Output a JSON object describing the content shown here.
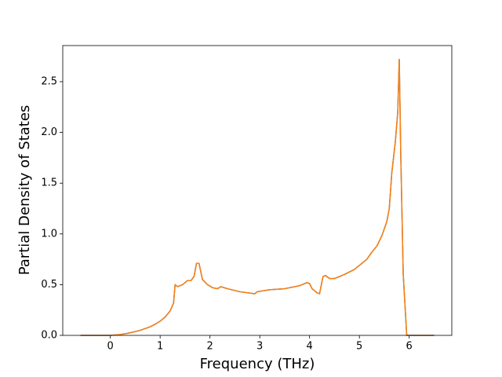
{
  "chart_data": {
    "type": "line",
    "x_label": "Frequency (THz)",
    "y_label": "Partial Density of States",
    "x": [
      -0.6,
      0,
      0.2,
      0.4,
      0.6,
      0.8,
      0.9,
      1.0,
      1.1,
      1.2,
      1.27,
      1.3,
      1.35,
      1.45,
      1.55,
      1.62,
      1.68,
      1.73,
      1.78,
      1.85,
      1.95,
      2.05,
      2.15,
      2.22,
      2.35,
      2.6,
      2.9,
      2.95,
      3.2,
      3.5,
      3.8,
      3.95,
      4.0,
      4.05,
      4.15,
      4.2,
      4.27,
      4.32,
      4.4,
      4.5,
      4.7,
      4.9,
      5.05,
      5.15,
      5.25,
      5.35,
      5.45,
      5.55,
      5.6,
      5.65,
      5.72,
      5.77,
      5.8,
      5.83,
      5.88,
      5.95,
      6.5
    ],
    "series": [
      {
        "color": "#1f77b4",
        "values": [
          0,
          0,
          0.008,
          0.025,
          0.05,
          0.085,
          0.11,
          0.14,
          0.18,
          0.24,
          0.32,
          0.5,
          0.48,
          0.5,
          0.54,
          0.54,
          0.58,
          0.71,
          0.71,
          0.55,
          0.5,
          0.47,
          0.46,
          0.48,
          0.46,
          0.43,
          0.41,
          0.43,
          0.45,
          0.46,
          0.49,
          0.52,
          0.51,
          0.46,
          0.42,
          0.41,
          0.58,
          0.59,
          0.56,
          0.56,
          0.6,
          0.65,
          0.71,
          0.75,
          0.82,
          0.88,
          0.98,
          1.12,
          1.25,
          1.6,
          1.9,
          2.2,
          2.72,
          1.8,
          0.6,
          0,
          0
        ]
      },
      {
        "color": "#ff7f0e",
        "values": [
          0,
          0,
          0.008,
          0.025,
          0.05,
          0.085,
          0.11,
          0.14,
          0.18,
          0.24,
          0.32,
          0.5,
          0.48,
          0.5,
          0.54,
          0.54,
          0.58,
          0.71,
          0.71,
          0.55,
          0.5,
          0.47,
          0.46,
          0.48,
          0.46,
          0.43,
          0.41,
          0.43,
          0.45,
          0.46,
          0.49,
          0.52,
          0.51,
          0.46,
          0.42,
          0.41,
          0.58,
          0.59,
          0.56,
          0.56,
          0.6,
          0.65,
          0.71,
          0.75,
          0.82,
          0.88,
          0.98,
          1.12,
          1.25,
          1.6,
          1.9,
          2.2,
          2.72,
          1.8,
          0.6,
          0,
          0
        ]
      }
    ],
    "xlim": [
      -0.955,
      6.855
    ],
    "ylim": [
      0,
      2.856
    ],
    "xticks": [
      0,
      1,
      2,
      3,
      4,
      5,
      6
    ],
    "yticks": [
      {
        "value": 0,
        "label": "0.0"
      },
      {
        "value": 0.5,
        "label": "0.5"
      },
      {
        "value": 1,
        "label": "1.0"
      },
      {
        "value": 1.5,
        "label": "1.5"
      },
      {
        "value": 2,
        "label": "2.0"
      },
      {
        "value": 2.5,
        "label": "2.5"
      }
    ]
  }
}
